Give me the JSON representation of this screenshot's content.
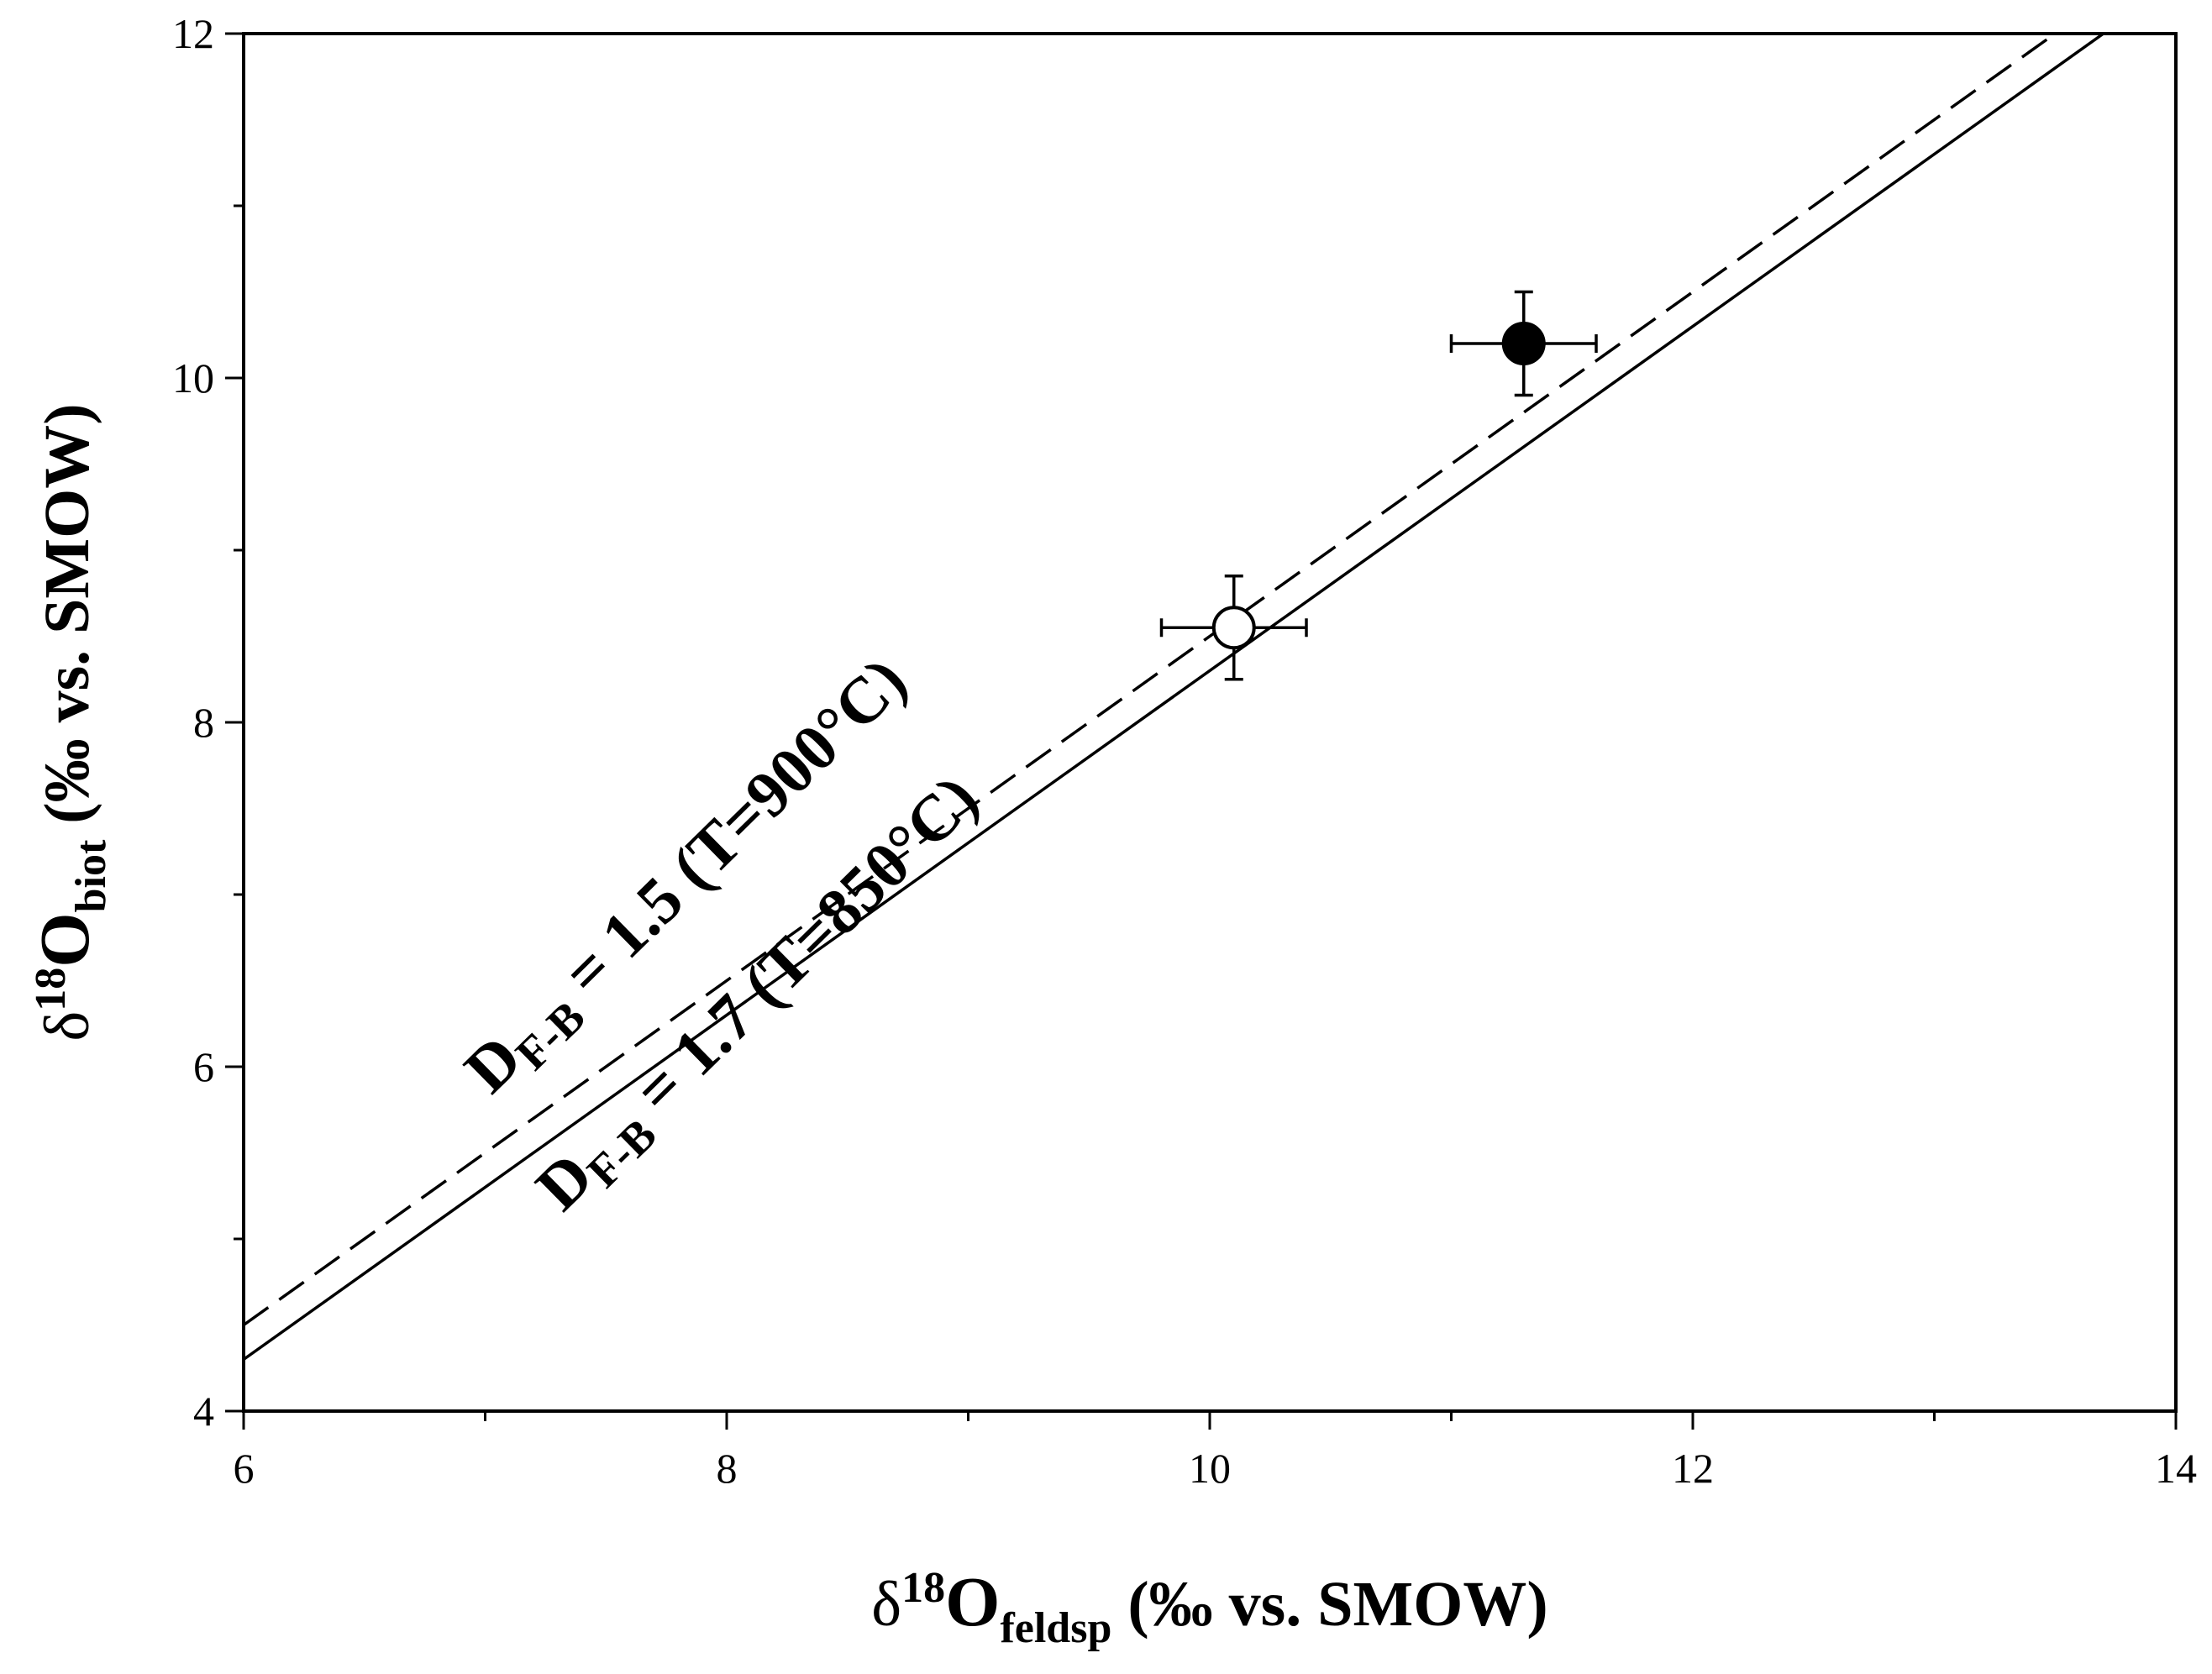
{
  "chart_data": {
    "type": "scatter",
    "title": "",
    "xlabel": {
      "main": "δ",
      "sup": "18",
      "element": "O",
      "sub": "feldsp",
      "unit": " (‰  vs. SMOW)"
    },
    "ylabel": {
      "main": "δ",
      "sup": "18",
      "element": "O",
      "sub": "biot",
      "unit": " (‰  vs. SMOW)"
    },
    "xlim": [
      6,
      14
    ],
    "ylim": [
      4,
      12
    ],
    "x_major_ticks": [
      6,
      8,
      10,
      12,
      14
    ],
    "x_minor_ticks": [
      7,
      9,
      11,
      13
    ],
    "y_major_ticks": [
      4,
      6,
      8,
      10,
      12
    ],
    "y_minor_ticks": [
      5,
      7,
      9,
      11
    ],
    "x_tick_labels": [
      "6",
      "8",
      "10",
      "12",
      "14"
    ],
    "y_tick_labels": [
      "4",
      "6",
      "8",
      "10",
      "12"
    ],
    "grid": false,
    "lines": [
      {
        "style": "dashed",
        "delta": 1.5,
        "temperature_c": 900,
        "points": [
          [
            6.0,
            4.5
          ],
          [
            13.5,
            12.0
          ]
        ],
        "label": {
          "prefix": "D",
          "sub": "F-B",
          "text": " = 1.5 (T=900°C)"
        }
      },
      {
        "style": "solid",
        "delta": 1.7,
        "temperature_c": 850,
        "points": [
          [
            6.0,
            4.3
          ],
          [
            13.7,
            12.0
          ]
        ],
        "label": {
          "prefix": "D",
          "sub": "F-B",
          "text": " = 1.7 (T=850°C)"
        }
      }
    ],
    "points": [
      {
        "x": 11.3,
        "y": 10.2,
        "x_err": 0.3,
        "y_err": 0.3,
        "fill": "#000000"
      },
      {
        "x": 10.1,
        "y": 8.55,
        "x_err": 0.3,
        "y_err": 0.3,
        "fill": "#ffffff"
      }
    ]
  }
}
